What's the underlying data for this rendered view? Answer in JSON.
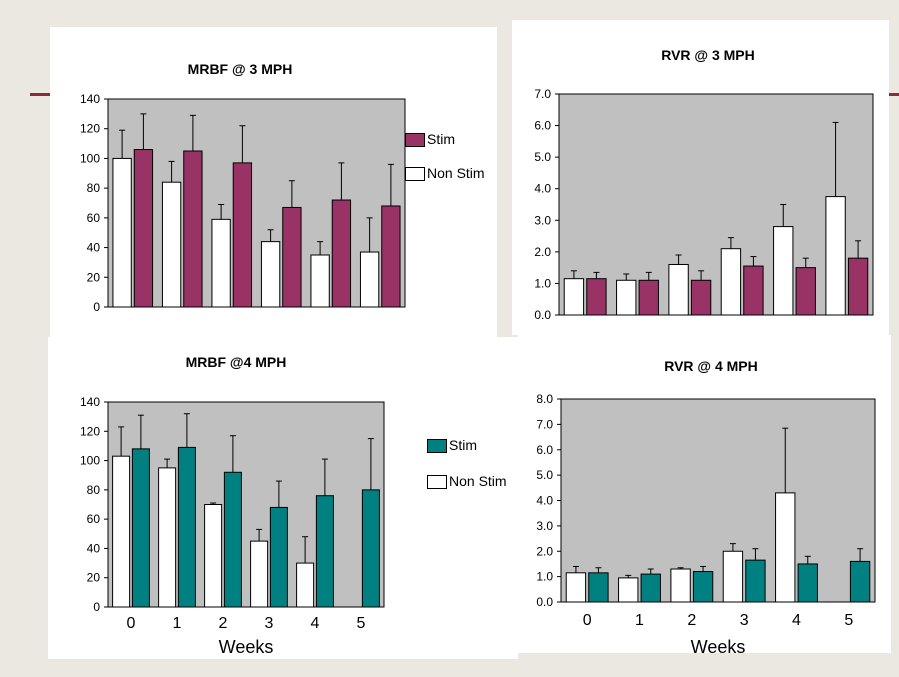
{
  "colors": {
    "stim_3mph": "#993366",
    "stim_4mph": "#008080",
    "non_stim": "#ffffff",
    "plot_area": "#c0c0c0",
    "page_bg": "#ebe8e1",
    "accent_line": "#8c2a36"
  },
  "chart_data": [
    {
      "id": "mrbf3",
      "type": "bar",
      "title": "MRBF @ 3 MPH",
      "xlabel": "",
      "ylabel": "",
      "categories": [
        "",
        "",
        "",
        "",
        "",
        ""
      ],
      "ylim": [
        0,
        140
      ],
      "yticks": [
        "0",
        "20",
        "40",
        "60",
        "80",
        "100",
        "120",
        "140"
      ],
      "legend": {
        "position": "right",
        "entries": [
          "Stim",
          "Non Stim"
        ]
      },
      "series": [
        {
          "name": "Non Stim",
          "color": "#ffffff",
          "values": [
            100,
            84,
            59,
            44,
            35,
            37
          ],
          "errors": [
            19,
            14,
            10,
            8,
            9,
            23
          ]
        },
        {
          "name": "Stim",
          "color": "#993366",
          "values": [
            106,
            105,
            97,
            67,
            72,
            68
          ],
          "errors": [
            24,
            24,
            25,
            18,
            25,
            28
          ]
        }
      ]
    },
    {
      "id": "rvr3",
      "type": "bar",
      "title": "RVR @ 3 MPH",
      "xlabel": "",
      "ylabel": "",
      "categories": [
        "",
        "",
        "",
        "",
        "",
        ""
      ],
      "ylim": [
        0,
        7
      ],
      "yticks": [
        "0.0",
        "1.0",
        "2.0",
        "3.0",
        "4.0",
        "5.0",
        "6.0",
        "7.0"
      ],
      "series": [
        {
          "name": "Non Stim",
          "color": "#ffffff",
          "values": [
            1.15,
            1.1,
            1.6,
            2.1,
            2.8,
            3.75
          ],
          "errors": [
            0.25,
            0.2,
            0.3,
            0.35,
            0.7,
            2.35
          ]
        },
        {
          "name": "Stim",
          "color": "#993366",
          "values": [
            1.15,
            1.1,
            1.1,
            1.55,
            1.5,
            1.8
          ],
          "errors": [
            0.2,
            0.25,
            0.3,
            0.3,
            0.3,
            0.55
          ]
        }
      ]
    },
    {
      "id": "mrbf4",
      "type": "bar",
      "title": "MRBF @4 MPH",
      "xlabel": "Weeks",
      "ylabel": "",
      "categories": [
        "0",
        "1",
        "2",
        "3",
        "4",
        "5"
      ],
      "ylim": [
        0,
        140
      ],
      "yticks": [
        "0",
        "20",
        "40",
        "60",
        "80",
        "100",
        "120",
        "140"
      ],
      "legend": {
        "position": "right",
        "entries": [
          "Stim",
          "Non Stim"
        ]
      },
      "series": [
        {
          "name": "Non Stim",
          "color": "#ffffff",
          "values": [
            103,
            95,
            70,
            45,
            30,
            null
          ],
          "errors": [
            20,
            6,
            1,
            8,
            18,
            null
          ]
        },
        {
          "name": "Stim",
          "color": "#008080",
          "values": [
            108,
            109,
            92,
            68,
            76,
            80
          ],
          "errors": [
            23,
            23,
            25,
            18,
            25,
            35
          ]
        }
      ]
    },
    {
      "id": "rvr4",
      "type": "bar",
      "title": "RVR @ 4 MPH",
      "xlabel": "Weeks",
      "ylabel": "",
      "categories": [
        "0",
        "1",
        "2",
        "3",
        "4",
        "5"
      ],
      "ylim": [
        0,
        8
      ],
      "yticks": [
        "0.0",
        "1.0",
        "2.0",
        "3.0",
        "4.0",
        "5.0",
        "6.0",
        "7.0",
        "8.0"
      ],
      "series": [
        {
          "name": "Non Stim",
          "color": "#ffffff",
          "values": [
            1.15,
            0.95,
            1.3,
            2.0,
            4.3,
            null
          ],
          "errors": [
            0.25,
            0.1,
            0.05,
            0.3,
            2.55,
            null
          ]
        },
        {
          "name": "Stim",
          "color": "#008080",
          "values": [
            1.15,
            1.1,
            1.2,
            1.65,
            1.5,
            1.6
          ],
          "errors": [
            0.2,
            0.2,
            0.2,
            0.45,
            0.3,
            0.5
          ]
        }
      ]
    }
  ]
}
